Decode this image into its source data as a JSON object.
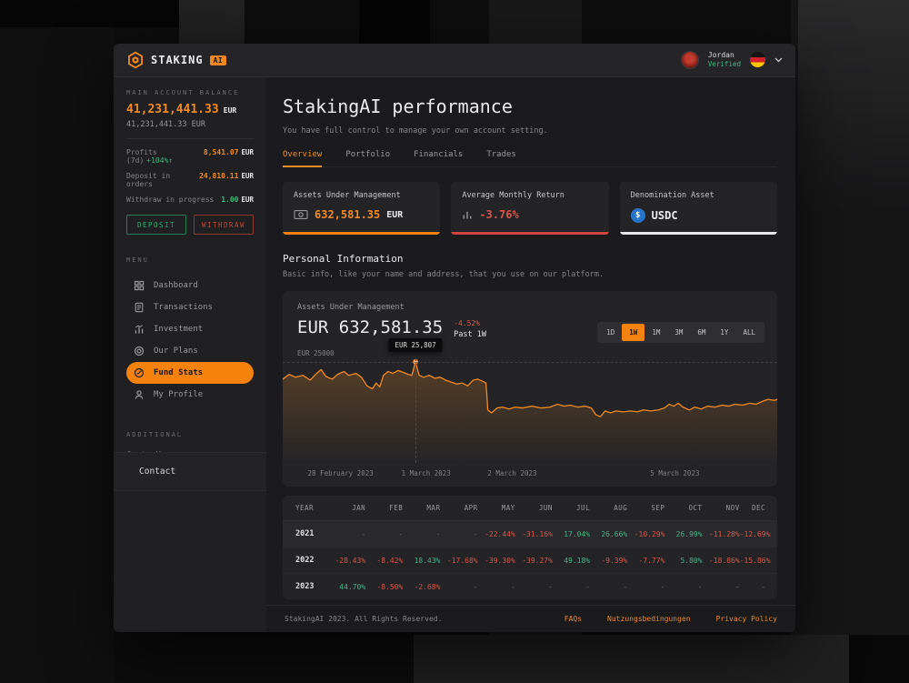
{
  "topbar": {
    "brand": {
      "name": "STAKING",
      "badge": "AI"
    },
    "user": {
      "name": "Jordan",
      "status": "Verified"
    }
  },
  "sidebar": {
    "balance": {
      "label": "MAIN ACCOUNT BALANCE",
      "amount": "41,231,441.33",
      "currency": "EUR",
      "secondary": "41,231,441.33 EUR"
    },
    "stats": [
      {
        "label": "Profits (7d)",
        "delta": "+104%↑",
        "value": "8,541.07",
        "currency": "EUR",
        "value_color": "#f08a24"
      },
      {
        "label": "Deposit in orders",
        "delta": "",
        "value": "24,810.11",
        "currency": "EUR",
        "value_color": "#f08a24"
      },
      {
        "label": "Withdraw in progress",
        "delta": "",
        "value": "1.00",
        "currency": "EUR",
        "value_color": "#3dba7e"
      }
    ],
    "actions": {
      "deposit": "DEPOSIT",
      "withdraw": "WITHDRAW"
    },
    "menu_label": "MENU",
    "menu": [
      {
        "label": "Dashboard",
        "icon": "dashboard-icon",
        "active": false
      },
      {
        "label": "Transactions",
        "icon": "transactions-icon",
        "active": false
      },
      {
        "label": "Investment",
        "icon": "investment-icon",
        "active": false
      },
      {
        "label": "Our Plans",
        "icon": "plans-icon",
        "active": false
      },
      {
        "label": "Fund Stats",
        "icon": "fund-stats-icon",
        "active": true
      },
      {
        "label": "My Profile",
        "icon": "profile-icon",
        "active": false
      }
    ],
    "additional_label": "ADDITIONAL",
    "additional": [
      {
        "label": "Go to Home"
      }
    ],
    "contact": "Contact"
  },
  "main": {
    "title": "StakingAI performance",
    "subtitle": "You have full control to manage your own account setting.",
    "tabs": [
      {
        "label": "Overview",
        "active": true
      },
      {
        "label": "Portfolio",
        "active": false
      },
      {
        "label": "Financials",
        "active": false
      },
      {
        "label": "Trades",
        "active": false
      }
    ],
    "cards": [
      {
        "title": "Assets Under Management",
        "icon": "banknote-icon",
        "value": "632,581.35",
        "value_color": "#f08a24",
        "suffix": "EUR",
        "accent": "#f5820d"
      },
      {
        "title": "Average Monthly Return",
        "icon": "bar-chart-icon",
        "value": "-3.76%",
        "value_color": "#d8544b",
        "suffix": "",
        "accent": "#cf4440"
      },
      {
        "title": "Denomination Asset",
        "icon": "usdc-icon",
        "value": "USDC",
        "value_color": "#ececee",
        "suffix": "",
        "accent": "#e9e9eb"
      }
    ],
    "section": {
      "title": "Personal Information",
      "subtitle": "Basic info, like your name and address, that you use on our platform."
    }
  },
  "chart": {
    "label": "Assets Under Management",
    "value": "EUR 632,581.35",
    "change": "-4.52%",
    "period": "Past 1W",
    "ranges": [
      "1D",
      "1W",
      "1M",
      "3M",
      "6M",
      "1Y",
      "ALL"
    ],
    "active_range": "1W",
    "gridline_label": "EUR 25000",
    "tooltip": "EUR 25,807",
    "x_labels": [
      "28 February 2023",
      "1 March 2023",
      "2 March 2023",
      "5 March 2023"
    ],
    "line_color": "#f08a24",
    "marker_index": 25,
    "points": [
      [
        0,
        33
      ],
      [
        7,
        28
      ],
      [
        14,
        31
      ],
      [
        22,
        29
      ],
      [
        30,
        34
      ],
      [
        37,
        27
      ],
      [
        42,
        23
      ],
      [
        47,
        30
      ],
      [
        54,
        33
      ],
      [
        60,
        28
      ],
      [
        67,
        25
      ],
      [
        72,
        29
      ],
      [
        80,
        27
      ],
      [
        86,
        31
      ],
      [
        92,
        40
      ],
      [
        98,
        43
      ],
      [
        102,
        37
      ],
      [
        106,
        41
      ],
      [
        110,
        29
      ],
      [
        115,
        25
      ],
      [
        120,
        27
      ],
      [
        126,
        24
      ],
      [
        132,
        26
      ],
      [
        137,
        28
      ],
      [
        141,
        29
      ],
      [
        145,
        15
      ],
      [
        149,
        29
      ],
      [
        154,
        31
      ],
      [
        160,
        29
      ],
      [
        166,
        32
      ],
      [
        172,
        31
      ],
      [
        178,
        34
      ],
      [
        184,
        36
      ],
      [
        190,
        38
      ],
      [
        196,
        37
      ],
      [
        202,
        40
      ],
      [
        208,
        34
      ],
      [
        213,
        33
      ],
      [
        218,
        35
      ],
      [
        222,
        37
      ],
      [
        224,
        65
      ],
      [
        228,
        68
      ],
      [
        234,
        63
      ],
      [
        240,
        62
      ],
      [
        247,
        64
      ],
      [
        254,
        62
      ],
      [
        262,
        63
      ],
      [
        272,
        61
      ],
      [
        282,
        63
      ],
      [
        292,
        62
      ],
      [
        300,
        59
      ],
      [
        307,
        61
      ],
      [
        314,
        60
      ],
      [
        322,
        62
      ],
      [
        330,
        61
      ],
      [
        337,
        63
      ],
      [
        342,
        70
      ],
      [
        347,
        72
      ],
      [
        352,
        66
      ],
      [
        358,
        68
      ],
      [
        364,
        66
      ],
      [
        372,
        67
      ],
      [
        380,
        66
      ],
      [
        387,
        67
      ],
      [
        394,
        65
      ],
      [
        402,
        66
      ],
      [
        410,
        65
      ],
      [
        417,
        63
      ],
      [
        422,
        59
      ],
      [
        427,
        61
      ],
      [
        432,
        58
      ],
      [
        437,
        62
      ],
      [
        444,
        65
      ],
      [
        450,
        62
      ],
      [
        457,
        64
      ],
      [
        464,
        61
      ],
      [
        472,
        62
      ],
      [
        480,
        60
      ],
      [
        487,
        61
      ],
      [
        494,
        59
      ],
      [
        502,
        60
      ],
      [
        510,
        58
      ],
      [
        517,
        59
      ],
      [
        524,
        56
      ],
      [
        530,
        54
      ],
      [
        537,
        55
      ],
      [
        540,
        54
      ]
    ]
  },
  "chart_data": {
    "type": "area",
    "title": "Assets Under Management",
    "unit": "EUR",
    "x_labels": [
      "28 February 2023",
      "1 March 2023",
      "2 March 2023",
      "5 March 2023"
    ],
    "gridline_eur": 25000,
    "highlighted_point": {
      "date": "1 March 2023",
      "value_eur": 25807
    },
    "approx_values_eur": [
      24750,
      24900,
      24820,
      25000,
      24600,
      24950,
      25100,
      25050,
      25807,
      25000,
      24900,
      24800,
      24700,
      23600,
      23700,
      23650,
      23700,
      23400,
      23600,
      23650,
      23700,
      23750,
      23800,
      23850,
      23900,
      24000
    ],
    "current_value": "EUR 632,581.35",
    "change_pct": -4.52,
    "period": "Past 1W"
  },
  "table": {
    "headers": [
      "YEAR",
      "JAN",
      "FEB",
      "MAR",
      "APR",
      "MAY",
      "JUN",
      "JUL",
      "AUG",
      "SEP",
      "OCT",
      "NOV",
      "DEC"
    ],
    "rows": [
      {
        "year": "2021",
        "highlight": true,
        "cells": [
          "-",
          "-",
          "-",
          "-",
          "-22.44%",
          "-31.16%",
          "17.04%",
          "26.66%",
          "-10.29%",
          "26.99%",
          "-11.28%",
          "-12.69%"
        ]
      },
      {
        "year": "2022",
        "highlight": false,
        "cells": [
          "-28.43%",
          "-8.42%",
          "18.43%",
          "-17.68%",
          "-39.30%",
          "-39.27%",
          "49.18%",
          "-9.39%",
          "-7.77%",
          "5.80%",
          "-18.86%",
          "-15.86%"
        ]
      },
      {
        "year": "2023",
        "highlight": false,
        "cells": [
          "44.70%",
          "-8.50%",
          "-2.68%",
          "-",
          "-",
          "-",
          "-",
          "-",
          "-",
          "-",
          "-",
          "-"
        ]
      }
    ]
  },
  "footer": {
    "copyright": "StakingAI 2023. All Rights Reserved.",
    "links": [
      "FAQs",
      "Nutzungsbedingungen",
      "Privacy Policy"
    ]
  }
}
